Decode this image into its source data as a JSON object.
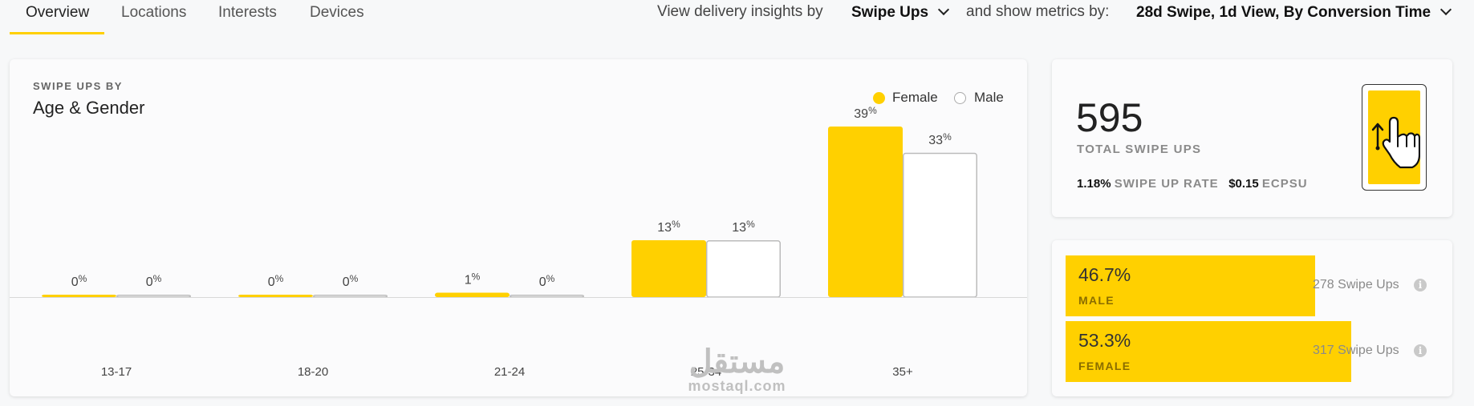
{
  "tabs": [
    {
      "label": "Overview",
      "active": true
    },
    {
      "label": "Locations",
      "active": false
    },
    {
      "label": "Interests",
      "active": false
    },
    {
      "label": "Devices",
      "active": false
    }
  ],
  "filters": {
    "view_prefix": "View delivery insights by",
    "view_value": "Swipe Ups",
    "metrics_prefix": "and show metrics by:",
    "metrics_value": "28d Swipe, 1d View, By Conversion Time"
  },
  "chart_card": {
    "kicker": "SWIPE UPS BY",
    "title": "Age & Gender"
  },
  "chart_data": {
    "type": "bar",
    "categories": [
      "13-17",
      "18-20",
      "21-24",
      "25-34",
      "35+"
    ],
    "series": [
      {
        "name": "Female",
        "values": [
          0,
          0,
          1,
          13,
          39
        ],
        "labels": [
          "0%",
          "0%",
          "1%",
          "13%",
          "39%"
        ],
        "color": "#ffd000"
      },
      {
        "name": "Male",
        "values": [
          0,
          0,
          0,
          13,
          33
        ],
        "labels": [
          "0%",
          "0%",
          "0%",
          "13%",
          "33%"
        ],
        "color": "#ffffff"
      }
    ],
    "ylim": [
      0,
      39
    ],
    "legend_position": "top-right",
    "grid": false
  },
  "summary": {
    "total": "595",
    "total_label": "TOTAL SWIPE UPS",
    "swipe_rate_value": "1.18%",
    "swipe_rate_label": "SWIPE UP RATE",
    "ecpsu_value": "$0.15",
    "ecpsu_label": "ECPSU",
    "phone_icon": "phone-swipe-up-icon"
  },
  "gender_split": [
    {
      "percent": "46.7%",
      "label": "MALE",
      "fraction": 0.467,
      "count": "278 Swipe Ups"
    },
    {
      "percent": "53.3%",
      "label": "FEMALE",
      "fraction": 0.533,
      "count": "317 Swipe Ups"
    }
  ],
  "watermark": {
    "arabic": "مستقل",
    "latin": "mostaql.com"
  },
  "colors": {
    "accent": "#ffd000",
    "male_bar_border": "#bbbbbb"
  }
}
